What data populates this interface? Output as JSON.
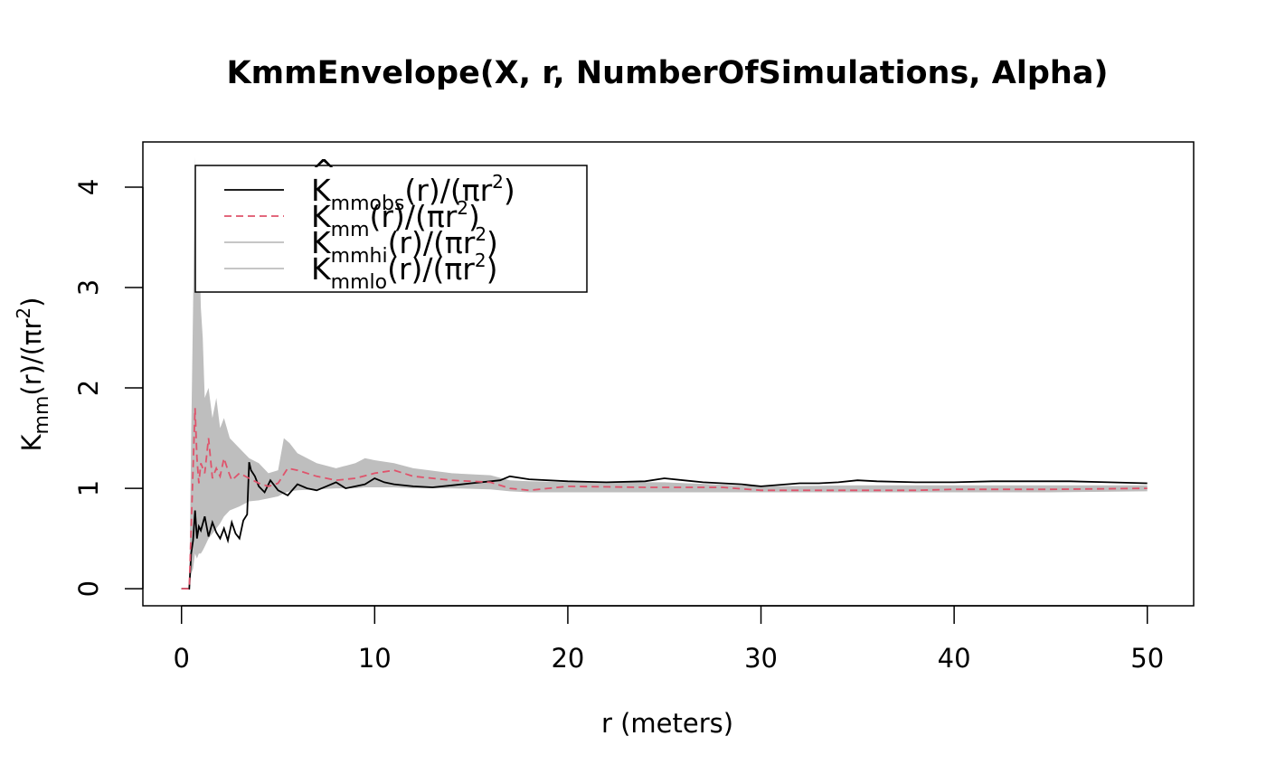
{
  "chart_data": {
    "type": "line",
    "title": "KmmEnvelope(X, r, NumberOfSimulations, Alpha)",
    "xlabel": "r (meters)",
    "ylabel": "K_mm(r)/(πr²)",
    "xlim": [
      -2,
      52.4
    ],
    "ylim": [
      -0.17,
      4.45
    ],
    "x_ticks": [
      0,
      10,
      20,
      30,
      40,
      50
    ],
    "y_ticks": [
      0,
      1,
      2,
      3,
      4
    ],
    "grid": false,
    "legend_position": "top-left",
    "legend": [
      {
        "base": "K",
        "hat": "^",
        "sub": "mmobs",
        "tail": "(r)/(πr",
        "sup": "2",
        "end": ")",
        "color": "#000000",
        "style": "solid"
      },
      {
        "base": "K",
        "hat": "",
        "sub": "mm",
        "tail": "(r)/(πr",
        "sup": "2",
        "end": ")",
        "color": "#DF536B",
        "style": "dashed"
      },
      {
        "base": "K",
        "hat": "",
        "sub": "mmhi",
        "tail": "(r)/(πr",
        "sup": "2",
        "end": ")",
        "color": "#BEBEBE",
        "style": "solid"
      },
      {
        "base": "K",
        "hat": "",
        "sub": "mmlo",
        "tail": "(r)/(πr",
        "sup": "2",
        "end": ")",
        "color": "#BEBEBE",
        "style": "solid"
      }
    ],
    "series": [
      {
        "name": "K^mmobs(r)/(πr²)",
        "color": "#000000",
        "x": [
          0,
          0.4,
          0.5,
          0.6,
          0.7,
          0.8,
          0.9,
          1.0,
          1.2,
          1.4,
          1.6,
          1.8,
          2.0,
          2.2,
          2.4,
          2.6,
          2.8,
          3.0,
          3.2,
          3.4,
          3.5,
          3.6,
          3.8,
          4.0,
          4.3,
          4.6,
          5.0,
          5.5,
          6.0,
          6.5,
          7.0,
          7.5,
          8.0,
          8.5,
          9.0,
          9.5,
          10.0,
          10.5,
          11.0,
          12.0,
          13.0,
          14.0,
          15.0,
          16.0,
          16.5,
          17.0,
          18.0,
          20.0,
          22.0,
          24.0,
          25.0,
          27.0,
          29.0,
          29.5,
          30.0,
          32.0,
          33.0,
          34.0,
          35.0,
          36.0,
          38.0,
          40.0,
          42.0,
          44.0,
          46.0,
          48.0,
          50.0
        ],
        "values": [
          0,
          0,
          0.35,
          0.48,
          0.78,
          0.5,
          0.62,
          0.58,
          0.72,
          0.52,
          0.66,
          0.56,
          0.5,
          0.6,
          0.48,
          0.66,
          0.55,
          0.5,
          0.68,
          0.74,
          1.26,
          1.18,
          1.12,
          1.02,
          0.96,
          1.08,
          0.98,
          0.93,
          1.04,
          1.0,
          0.98,
          1.02,
          1.06,
          1.0,
          1.02,
          1.04,
          1.1,
          1.06,
          1.04,
          1.02,
          1.01,
          1.03,
          1.05,
          1.07,
          1.08,
          1.12,
          1.09,
          1.07,
          1.06,
          1.07,
          1.1,
          1.06,
          1.04,
          1.03,
          1.02,
          1.05,
          1.05,
          1.06,
          1.08,
          1.07,
          1.06,
          1.06,
          1.07,
          1.07,
          1.07,
          1.06,
          1.05
        ]
      },
      {
        "name": "Kmm(r)/(πr²)",
        "color": "#DF536B",
        "x": [
          0,
          0.4,
          0.5,
          0.6,
          0.7,
          0.8,
          0.9,
          1.0,
          1.2,
          1.4,
          1.6,
          1.8,
          2.0,
          2.2,
          2.4,
          2.6,
          3.0,
          3.5,
          4.0,
          4.5,
          5.0,
          5.5,
          6.0,
          7.0,
          8.0,
          9.0,
          10.0,
          11.0,
          12.0,
          14.0,
          16.0,
          17.0,
          18.0,
          20.0,
          24.0,
          28.0,
          30.0,
          34.0,
          38.0,
          40.0,
          45.0,
          50.0
        ],
        "values": [
          0,
          0,
          0.6,
          1.2,
          1.8,
          1.3,
          1.05,
          1.25,
          1.15,
          1.5,
          1.1,
          1.2,
          1.12,
          1.3,
          1.18,
          1.08,
          1.15,
          1.1,
          1.05,
          1.02,
          1.05,
          1.2,
          1.18,
          1.12,
          1.08,
          1.1,
          1.15,
          1.18,
          1.12,
          1.08,
          1.06,
          1.0,
          0.98,
          1.02,
          1.01,
          1.01,
          0.98,
          0.98,
          0.98,
          0.99,
          0.99,
          1.0
        ]
      }
    ],
    "envelope": {
      "name": "Kmmhi / Kmmlo envelope",
      "color": "#BEBEBE",
      "x": [
        0,
        0.4,
        0.5,
        0.6,
        0.7,
        0.8,
        0.9,
        1.0,
        1.1,
        1.2,
        1.4,
        1.6,
        1.8,
        2.0,
        2.2,
        2.5,
        3.0,
        3.5,
        4.0,
        4.5,
        5.0,
        5.3,
        5.6,
        6.0,
        7.0,
        8.0,
        9.0,
        9.5,
        10.0,
        11.0,
        12.0,
        14.0,
        16.0,
        17.0,
        18.0,
        20.0,
        25.0,
        30.0,
        35.0,
        40.0,
        45.0,
        50.0
      ],
      "hi": [
        0,
        0,
        1.5,
        2.8,
        4.3,
        3.1,
        3.6,
        2.8,
        2.5,
        1.9,
        2.0,
        1.7,
        1.9,
        1.6,
        1.7,
        1.5,
        1.4,
        1.3,
        1.25,
        1.15,
        1.18,
        1.5,
        1.45,
        1.35,
        1.25,
        1.2,
        1.25,
        1.3,
        1.28,
        1.25,
        1.2,
        1.15,
        1.13,
        1.08,
        1.07,
        1.06,
        1.06,
        1.02,
        1.03,
        1.03,
        1.03,
        1.03
      ],
      "lo": [
        0,
        0,
        0.15,
        0.2,
        0.35,
        0.3,
        0.35,
        0.35,
        0.38,
        0.42,
        0.5,
        0.55,
        0.6,
        0.65,
        0.72,
        0.78,
        0.82,
        0.87,
        0.88,
        0.9,
        0.92,
        0.95,
        0.97,
        0.98,
        0.99,
        1.0,
        1.0,
        1.01,
        1.01,
        1.01,
        1.0,
        1.0,
        0.99,
        0.97,
        0.96,
        0.96,
        0.96,
        0.96,
        0.96,
        0.96,
        0.96,
        0.97
      ]
    }
  }
}
